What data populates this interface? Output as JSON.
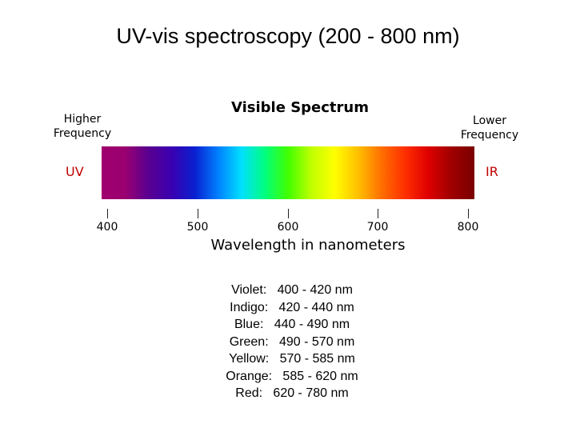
{
  "title": "UV-vis spectroscopy (200 - 800 nm)",
  "spectrum": {
    "title": "Visible Spectrum",
    "left_label_line1": "Higher",
    "left_label_line2": "Frequency",
    "right_label_line1": "Lower",
    "right_label_line2": "Frequency",
    "uv_label": "UV",
    "ir_label": "IR",
    "axis_label": "Wavelength in nanometers",
    "ticks": [
      {
        "value": 400,
        "label": "400"
      },
      {
        "value": 500,
        "label": "500"
      },
      {
        "value": 600,
        "label": "600"
      },
      {
        "value": 700,
        "label": "700"
      },
      {
        "value": 800,
        "label": "800"
      }
    ],
    "gradient_colors": [
      "#a0006e",
      "#9a0070",
      "#5a0090",
      "#3a00b0",
      "#0a20d0",
      "#0080ff",
      "#00e0ff",
      "#00ff80",
      "#40ff00",
      "#c0ff00",
      "#ffff00",
      "#ffc000",
      "#ff7000",
      "#ff3000",
      "#e00000",
      "#a00000",
      "#7a0000"
    ]
  },
  "bands": [
    {
      "text": "Violet:   400 - 420 nm"
    },
    {
      "text": "Indigo:   420 - 440 nm"
    },
    {
      "text": "Blue:   440 - 490 nm"
    },
    {
      "text": "Green:   490 - 570 nm"
    },
    {
      "text": "Yellow:   570 - 585 nm"
    },
    {
      "text": "Orange:   585 - 620 nm"
    },
    {
      "text": "Red:   620 - 780 nm"
    }
  ]
}
